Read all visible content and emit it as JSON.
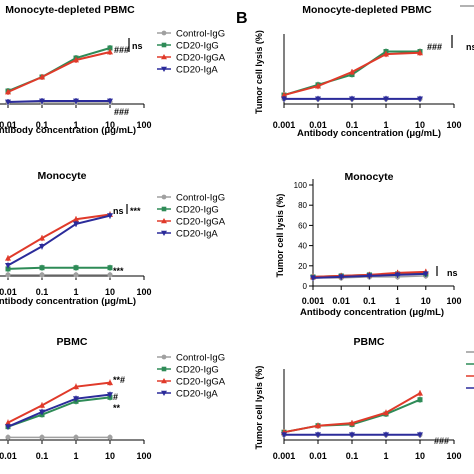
{
  "panel_label": "B",
  "colors": {
    "control": "#a0a0a0",
    "cd20_igg": "#2e8b57",
    "cd20_igga": "#e03a2a",
    "cd20_iga": "#2b2b9a"
  },
  "chart_data": [
    {
      "type": "line",
      "title": "Monocyte-depleted PBMC",
      "xlabel": "Antibody concentration (μg/mL)",
      "ylabel": "",
      "x_scale": "log",
      "x_ticks": [
        "0.01",
        "0.1",
        "1",
        "10",
        "100"
      ],
      "legend": [
        "Control-IgG",
        "CD20-IgG",
        "CD20-IgGA",
        "CD20-IgA"
      ],
      "legend_placement": "right",
      "annotations": [
        "ns",
        "###",
        "###"
      ],
      "x": [
        0.001,
        0.01,
        0.1,
        1,
        10
      ],
      "ylim": [
        0,
        60
      ],
      "series": [
        {
          "name": "Control-IgG",
          "values": [
            2,
            2,
            2,
            2,
            2
          ]
        },
        {
          "name": "CD20-IgG",
          "values": [
            5,
            13,
            27,
            46,
            56
          ]
        },
        {
          "name": "CD20-IgGA",
          "values": [
            5,
            12,
            27,
            44,
            52
          ]
        },
        {
          "name": "CD20-IgA",
          "values": [
            2,
            2,
            3,
            3,
            3
          ]
        }
      ]
    },
    {
      "type": "line",
      "title": "Monocyte-depleted PBMC",
      "xlabel": "Antibody concentration (μg/mL)",
      "ylabel": "Tumor cell lysis (%)",
      "x_scale": "log",
      "x_ticks": [
        "0.001",
        "0.01",
        "0.1",
        "1",
        "10",
        "100"
      ],
      "annotations": [
        "ns",
        "###"
      ],
      "x": [
        0.001,
        0.01,
        0.1,
        1,
        10
      ],
      "ylim": [
        0,
        50
      ],
      "series": [
        {
          "name": "Control-IgG",
          "values": [
            4,
            4,
            4,
            4,
            4
          ]
        },
        {
          "name": "CD20-IgG",
          "values": [
            7,
            15,
            23,
            41,
            41
          ]
        },
        {
          "name": "CD20-IgGA",
          "values": [
            7,
            14,
            25,
            39,
            40
          ]
        },
        {
          "name": "CD20-IgA",
          "values": [
            4,
            4,
            4,
            4,
            4
          ]
        }
      ]
    },
    {
      "type": "line",
      "title": "Monocyte",
      "xlabel": "Antibody concentration (μg/mL)",
      "ylabel": "",
      "x_scale": "log",
      "x_ticks": [
        "0.01",
        "0.1",
        "1",
        "10",
        "100"
      ],
      "legend": [
        "Control-IgG",
        "CD20-IgG",
        "CD20-IgGA",
        "CD20-IgA"
      ],
      "legend_placement": "right",
      "annotations": [
        "***",
        "ns",
        "***"
      ],
      "x": [
        0.001,
        0.01,
        0.1,
        1,
        10
      ],
      "ylim": [
        0,
        60
      ],
      "series": [
        {
          "name": "Control-IgG",
          "values": [
            1,
            1,
            1,
            1,
            1
          ]
        },
        {
          "name": "CD20-IgG",
          "values": [
            5,
            6,
            7,
            7,
            7
          ]
        },
        {
          "name": "CD20-IgGA",
          "values": [
            6,
            15,
            32,
            48,
            52
          ]
        },
        {
          "name": "CD20-IgA",
          "values": [
            3,
            9,
            25,
            44,
            51
          ]
        }
      ]
    },
    {
      "type": "line",
      "title": "Monocyte",
      "xlabel": "Antibody concentration (μg/mL)",
      "ylabel": "Tumor cell lysis (%)",
      "x_scale": "log",
      "x_ticks": [
        "0.001",
        "0.01",
        "0.1",
        "1",
        "10",
        "100"
      ],
      "y_ticks": [
        "0",
        "20",
        "40",
        "60",
        "80",
        "100"
      ],
      "annotations": [
        "ns"
      ],
      "x": [
        0.001,
        0.01,
        0.1,
        1,
        10
      ],
      "ylim": [
        0,
        100
      ],
      "series": [
        {
          "name": "Control-IgG",
          "values": [
            8,
            8,
            9,
            9,
            10
          ]
        },
        {
          "name": "CD20-IgG",
          "values": [
            9,
            10,
            11,
            12,
            12
          ]
        },
        {
          "name": "CD20-IgGA",
          "values": [
            9,
            10,
            11,
            13,
            14
          ]
        },
        {
          "name": "CD20-IgA",
          "values": [
            8,
            9,
            10,
            11,
            12
          ]
        }
      ]
    },
    {
      "type": "line",
      "title": "PBMC",
      "xlabel": "",
      "ylabel": "",
      "x_scale": "log",
      "x_ticks": [
        "0.01",
        "0.1",
        "1",
        "10",
        "100"
      ],
      "legend": [
        "Control-IgG",
        "CD20-IgG",
        "CD20-IgGA",
        "CD20-IgA"
      ],
      "legend_placement": "right",
      "annotations": [
        "**#",
        "#",
        "**"
      ],
      "x": [
        0.001,
        0.01,
        0.1,
        1,
        10
      ],
      "ylim": [
        0,
        60
      ],
      "series": [
        {
          "name": "Control-IgG",
          "values": [
            2,
            2,
            2,
            2,
            2
          ]
        },
        {
          "name": "CD20-IgG",
          "values": [
            4,
            10,
            19,
            29,
            32
          ]
        },
        {
          "name": "CD20-IgGA",
          "values": [
            5,
            13,
            26,
            40,
            43
          ]
        },
        {
          "name": "CD20-IgA",
          "values": [
            4,
            10,
            21,
            31,
            34
          ]
        }
      ]
    },
    {
      "type": "line",
      "title": "PBMC",
      "xlabel": "",
      "ylabel": "Tumor cell lysis (%)",
      "x_scale": "log",
      "x_ticks": [
        "0.001",
        "0.01",
        "0.1",
        "1",
        "10",
        "100"
      ],
      "annotations": [
        "###"
      ],
      "x": [
        0.001,
        0.01,
        0.1,
        1,
        10
      ],
      "ylim": [
        0,
        50
      ],
      "series": [
        {
          "name": "Control-IgG",
          "values": [
            4,
            4,
            4,
            4,
            4
          ]
        },
        {
          "name": "CD20-IgG",
          "values": [
            6,
            11,
            12,
            20,
            31
          ]
        },
        {
          "name": "CD20-IgGA",
          "values": [
            6,
            11,
            13,
            21,
            36
          ]
        },
        {
          "name": "CD20-IgA",
          "values": [
            4,
            4,
            4,
            4,
            4
          ]
        }
      ]
    }
  ]
}
